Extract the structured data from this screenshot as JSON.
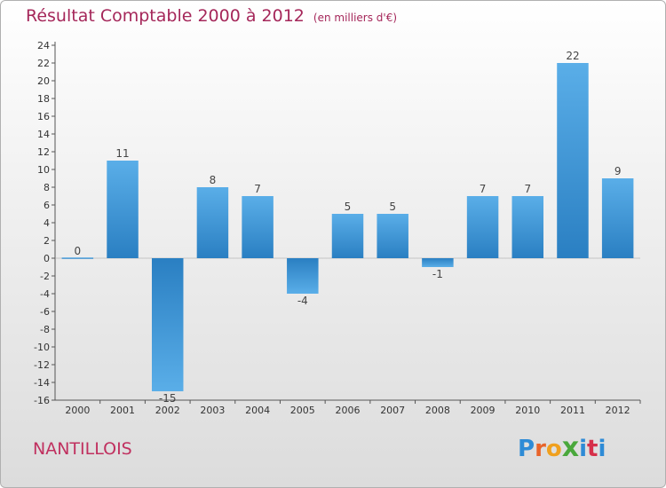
{
  "chart_data": {
    "type": "bar",
    "title": "Résultat Comptable 2000 à 2012",
    "subtitle": "(en milliers d'€)",
    "categories": [
      "2000",
      "2001",
      "2002",
      "2003",
      "2004",
      "2005",
      "2006",
      "2007",
      "2008",
      "2009",
      "2010",
      "2011",
      "2012"
    ],
    "values": [
      0,
      11,
      -15,
      8,
      7,
      -4,
      5,
      5,
      -1,
      7,
      7,
      22,
      9
    ],
    "data_labels": [
      "0",
      "11",
      "-15",
      "8",
      "7",
      "-4",
      "5",
      "5",
      "-1",
      "7",
      "7",
      "22",
      "9"
    ],
    "ylim": [
      -16,
      24
    ],
    "yticks": [
      24,
      22,
      20,
      18,
      16,
      14,
      12,
      10,
      8,
      6,
      4,
      2,
      0,
      -2,
      -4,
      -6,
      -8,
      -10,
      -12,
      -14,
      -16
    ],
    "ytick_labels": [
      "24",
      "22",
      "20",
      "18",
      "16",
      "14",
      "12",
      "10",
      "8",
      "6",
      "4",
      "2",
      "0",
      "-2",
      "-4",
      "-6",
      "-8",
      "-10",
      "-12",
      "-14",
      "-16"
    ],
    "xlabel": "",
    "ylabel": "",
    "grid": false,
    "bar_color_light": "#5aaee8",
    "bar_color_dark": "#2a7fc2"
  },
  "footer": {
    "commune": "NANTILLOIS",
    "logo_letters": [
      "P",
      "r",
      "o",
      "x",
      "i",
      "t",
      "i"
    ]
  },
  "colors": {
    "title": "#a5275a",
    "commune": "#c0305f",
    "axis": "#555555"
  }
}
